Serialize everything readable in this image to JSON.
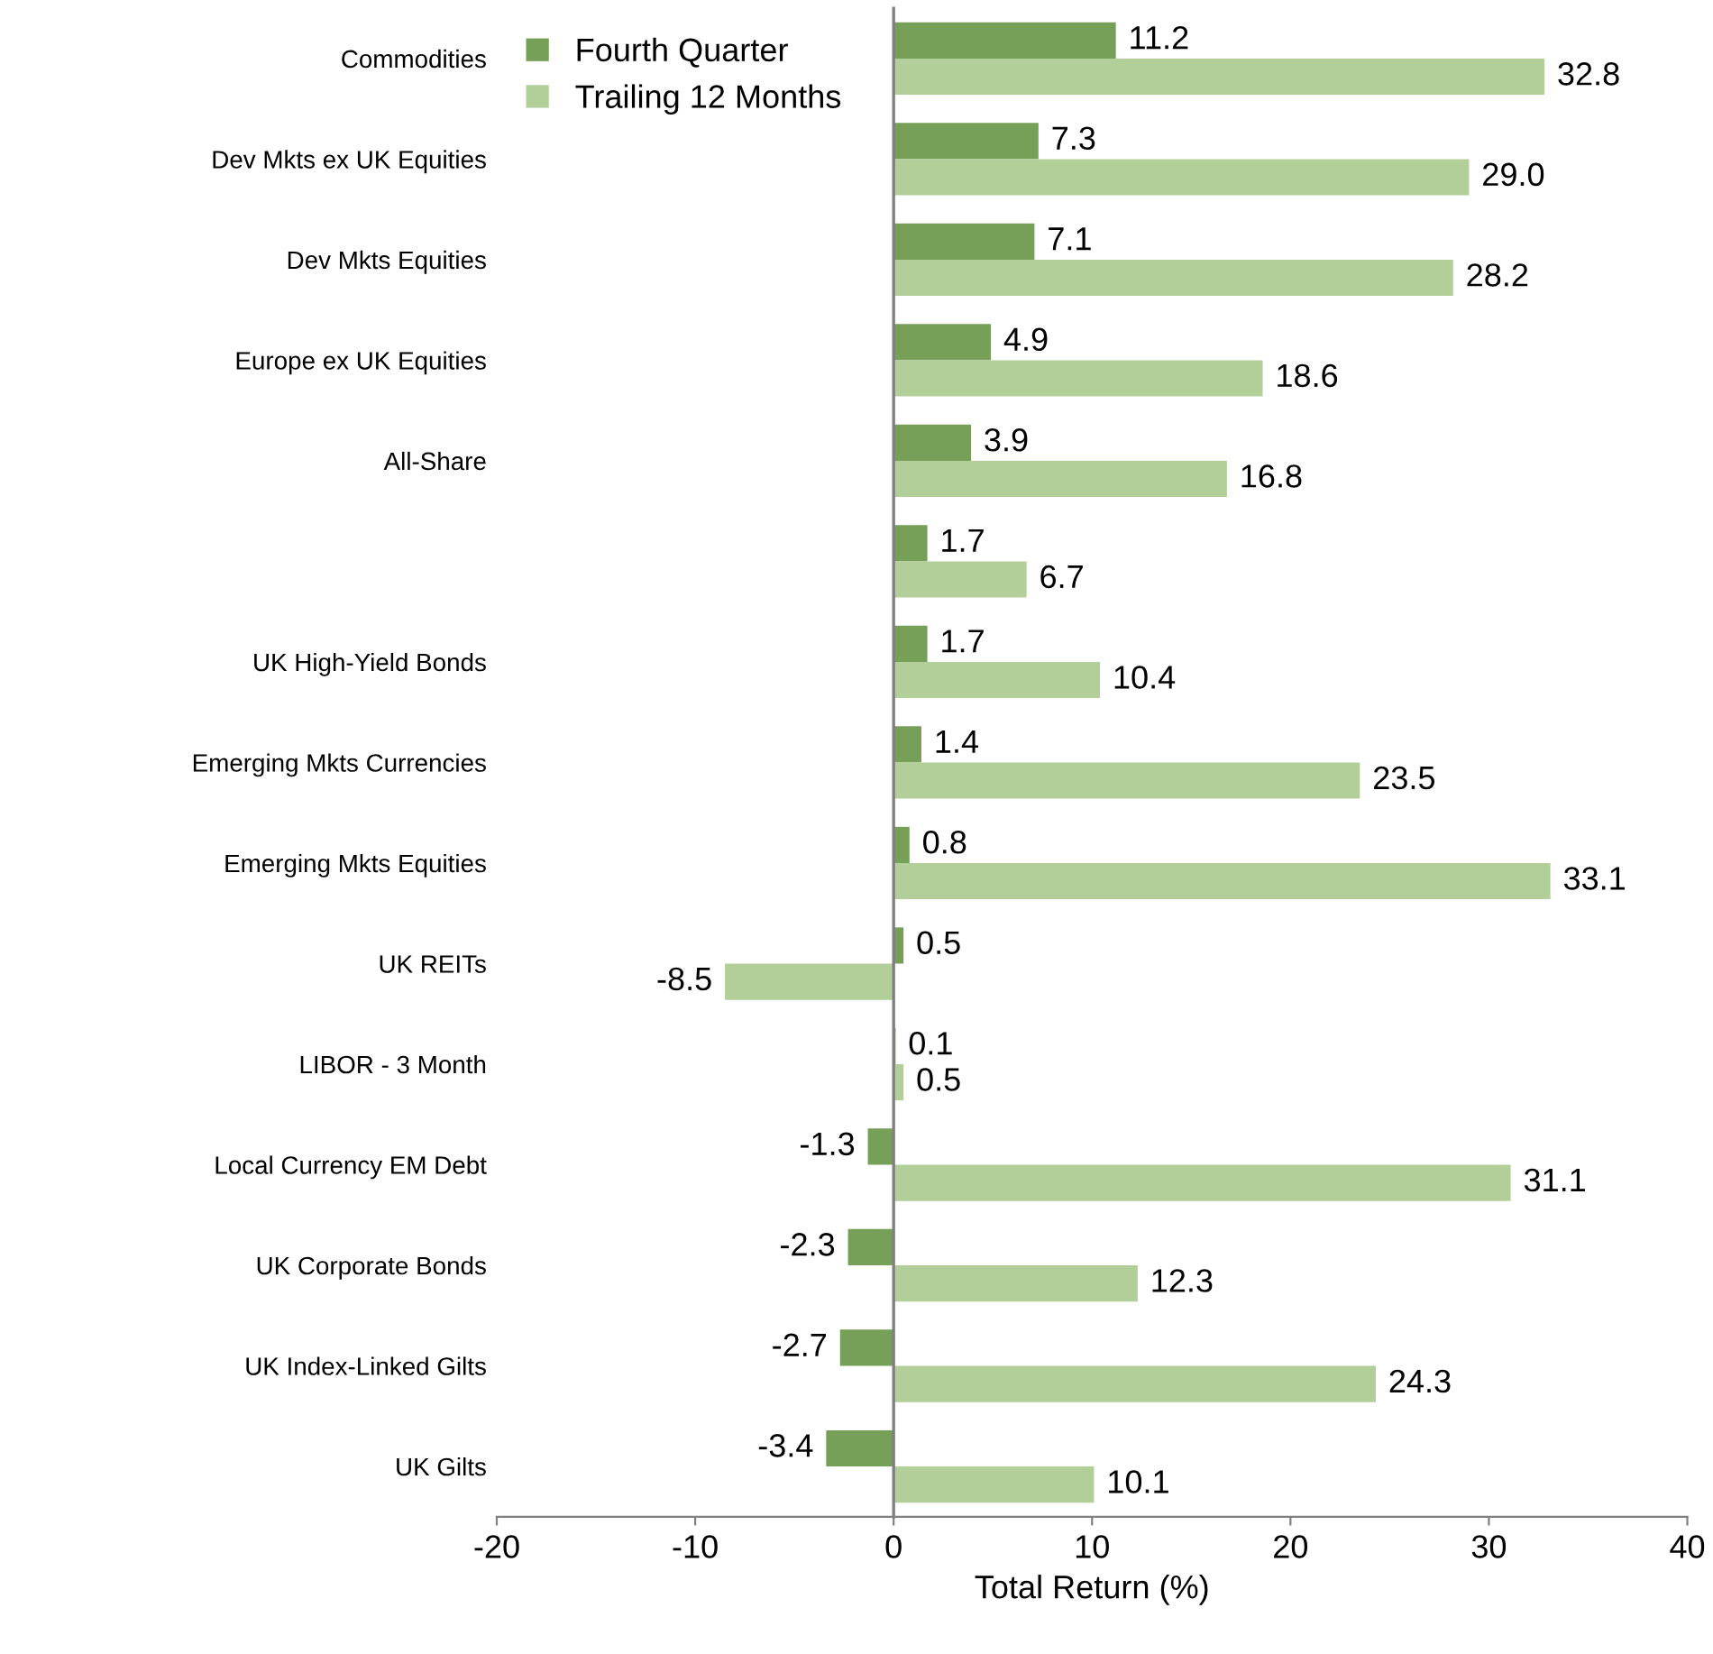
{
  "chart_data": {
    "type": "bar",
    "orientation": "horizontal",
    "categories": [
      "Commodities",
      "Dev Mkts ex UK Equities",
      "Dev Mkts Equities",
      "Europe ex UK Equities",
      "All-Share",
      null,
      "UK High-Yield Bonds",
      "Emerging Mkts Currencies",
      "Emerging Mkts Equities",
      "UK REITs",
      "LIBOR - 3 Month",
      "Local Currency EM Debt",
      "UK Corporate Bonds",
      "UK Index-Linked Gilts",
      "UK Gilts"
    ],
    "series": [
      {
        "name": "Fourth Quarter",
        "color": "#76a058",
        "values": [
          11.2,
          7.3,
          7.1,
          4.9,
          3.9,
          1.7,
          1.7,
          1.4,
          0.8,
          0.5,
          0.1,
          -1.3,
          -2.3,
          -2.7,
          -3.4
        ],
        "value_labels": [
          "11.2",
          "7.3",
          "7.1",
          "4.9",
          "3.9",
          "1.7",
          "1.7",
          "1.4",
          "0.8",
          "0.5",
          "0.1",
          "-1.3",
          "-2.3",
          "-2.7",
          "-3.4"
        ]
      },
      {
        "name": "Trailing 12 Months",
        "color": "#b3cf99",
        "values": [
          32.8,
          29.0,
          28.2,
          18.6,
          16.8,
          6.7,
          10.4,
          23.5,
          33.1,
          -8.5,
          0.5,
          31.1,
          12.3,
          24.3,
          10.1
        ],
        "value_labels": [
          "32.8",
          "29.0",
          "28.2",
          "18.6",
          "16.8",
          "6.7",
          "10.4",
          "23.5",
          "33.1",
          "-8.5",
          "0.5",
          "31.1",
          "12.3",
          "24.3",
          "10.1"
        ]
      }
    ],
    "xlim": [
      -20,
      40
    ],
    "xticks": [
      -20,
      -10,
      0,
      10,
      20,
      30,
      40
    ],
    "xlabel": "Total Return (%)",
    "legend": "top left"
  }
}
